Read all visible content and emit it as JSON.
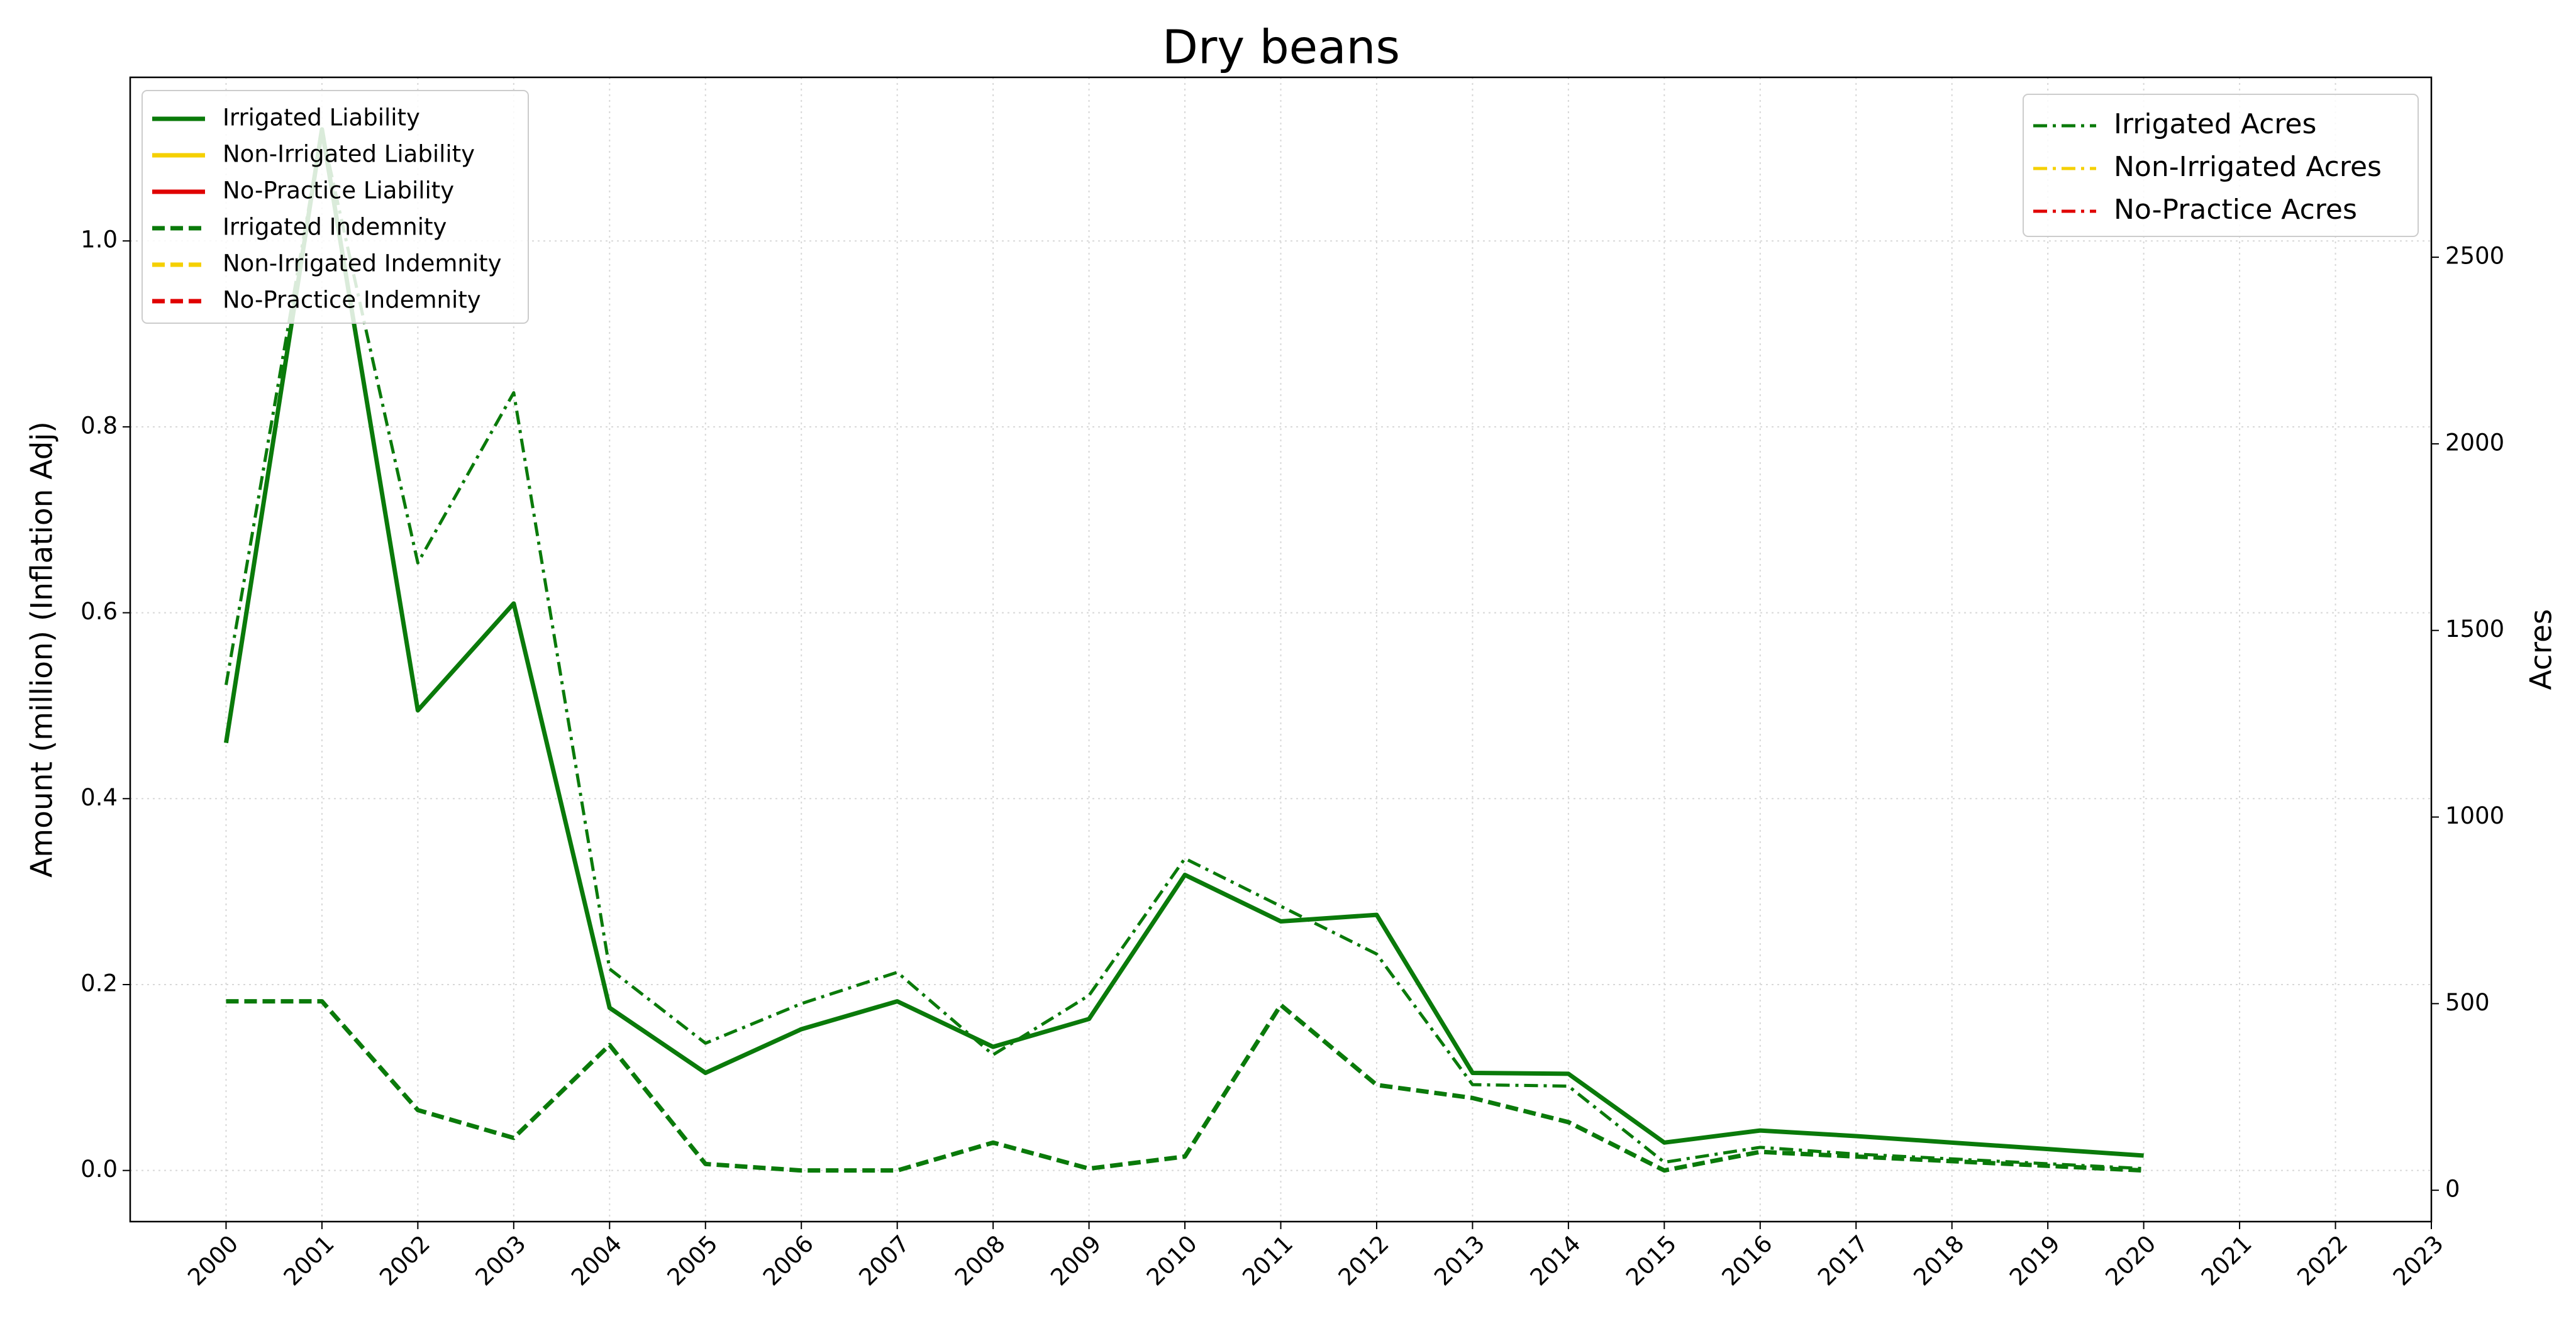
{
  "chart_data": {
    "type": "line",
    "title": "Dry beans",
    "ylabel": "Amount (million) (Inflation Adj)",
    "y2label": "Acres",
    "x": [
      2000,
      2001,
      2002,
      2003,
      2004,
      2005,
      2006,
      2007,
      2008,
      2009,
      2010,
      2011,
      2012,
      2013,
      2014,
      2015,
      2016,
      2017,
      2018,
      2019,
      2020
    ],
    "xlim": [
      1999,
      2023
    ],
    "xticks": [
      2000,
      2001,
      2002,
      2003,
      2004,
      2005,
      2006,
      2007,
      2008,
      2009,
      2010,
      2011,
      2012,
      2013,
      2014,
      2015,
      2016,
      2017,
      2018,
      2019,
      2020,
      2021,
      2022,
      2023
    ],
    "ylim": [
      -0.055,
      1.176
    ],
    "yticks": [
      {
        "value": 0,
        "label": "0.0"
      },
      0.2,
      0.4,
      0.6,
      0.8,
      {
        "value": 1,
        "label": "1.0"
      }
    ],
    "y2lim": [
      -84,
      2982
    ],
    "y2ticks": [
      0,
      500,
      1000,
      1500,
      2000,
      2500
    ],
    "grid": true,
    "legend": "upper left",
    "legend2": "upper right",
    "series": [
      {
        "name": "Irrigated Liability",
        "color": "#0a7a0a",
        "dash": "solid",
        "values": [
          0.46,
          1.12,
          0.495,
          0.61,
          0.175,
          0.105,
          0.152,
          0.182,
          0.133,
          0.163,
          0.318,
          0.268,
          0.275,
          0.105,
          0.104,
          0.03,
          0.043,
          0.037,
          0.03,
          0.023,
          0.016
        ]
      },
      {
        "name": "Non-Irrigated Liability",
        "color": "#f5d000",
        "dash": "solid",
        "values": [
          null,
          null,
          null,
          null,
          null,
          null,
          null,
          null,
          null,
          null,
          null,
          null,
          null,
          null,
          null,
          null,
          null,
          null,
          null,
          null,
          null
        ]
      },
      {
        "name": "No-Practice Liability",
        "color": "#e00000",
        "dash": "solid",
        "values": [
          null,
          null,
          null,
          null,
          null,
          null,
          null,
          null,
          null,
          null,
          null,
          null,
          null,
          null,
          null,
          null,
          null,
          null,
          null,
          null,
          null
        ]
      },
      {
        "name": "Irrigated Indemnity",
        "color": "#0a7a0a",
        "dash": "dashed",
        "values": [
          0.182,
          0.182,
          0.065,
          0.035,
          0.135,
          0.007,
          0.0,
          0.0,
          0.03,
          0.002,
          0.015,
          0.178,
          0.092,
          0.078,
          0.052,
          0.0,
          0.02,
          0.015,
          0.01,
          0.005,
          0.0
        ]
      },
      {
        "name": "Non-Irrigated Indemnity",
        "color": "#f5d000",
        "dash": "dashed",
        "values": [
          null,
          null,
          null,
          null,
          null,
          null,
          null,
          null,
          null,
          null,
          null,
          null,
          null,
          null,
          null,
          null,
          null,
          null,
          null,
          null,
          null
        ]
      },
      {
        "name": "No-Practice Indemnity",
        "color": "#e00000",
        "dash": "dashed",
        "values": [
          null,
          null,
          null,
          null,
          null,
          null,
          null,
          null,
          null,
          null,
          null,
          null,
          null,
          null,
          null,
          null,
          null,
          null,
          null,
          null,
          null
        ]
      },
      {
        "name": "Irrigated Acres",
        "color": "#0a7a0a",
        "dash": "dashdot",
        "axis": "y2",
        "values": [
          1354,
          2836,
          1681,
          2137,
          593,
          394,
          500,
          584,
          363,
          522,
          889,
          761,
          633,
          283,
          279,
          75,
          115,
          97,
          84,
          71,
          58
        ]
      },
      {
        "name": "Non-Irrigated Acres",
        "color": "#f5d000",
        "dash": "dashdot",
        "axis": "y2",
        "values": [
          null,
          null,
          null,
          null,
          null,
          null,
          null,
          null,
          null,
          null,
          null,
          null,
          null,
          null,
          null,
          null,
          null,
          null,
          null,
          null,
          null
        ]
      },
      {
        "name": "No-Practice Acres",
        "color": "#e00000",
        "dash": "dashdot",
        "axis": "y2",
        "values": [
          null,
          null,
          null,
          null,
          null,
          null,
          null,
          null,
          null,
          null,
          null,
          null,
          null,
          null,
          null,
          null,
          null,
          null,
          null,
          null,
          null
        ]
      }
    ]
  }
}
